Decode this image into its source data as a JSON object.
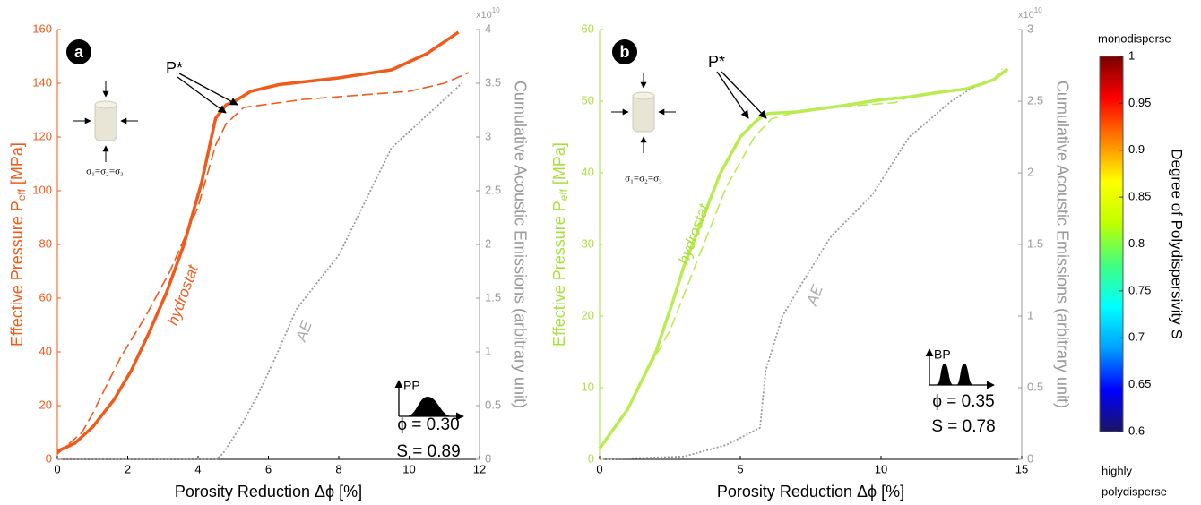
{
  "chart_data": [
    {
      "type": "line",
      "panel": "a",
      "xlabel": "Porosity Reduction Δϕ [%]",
      "ylabel": "Effective Pressure P",
      "ylabel_sub": "eff",
      "ylabel_unit": " [MPa]",
      "y2label": "Cumulative Acoustic Emissions (arbitrary unit)",
      "y2_multiplier": "x10",
      "y2_multiplier_exp": "10",
      "axis_color": "#f05a1a",
      "y2_color": "#999999",
      "xlim": [
        0,
        12
      ],
      "xticks": [
        0,
        2,
        4,
        6,
        8,
        10,
        12
      ],
      "ylim": [
        0,
        160
      ],
      "yticks": [
        0,
        20,
        40,
        60,
        80,
        100,
        120,
        140,
        160
      ],
      "y2lim": [
        0,
        4
      ],
      "y2ticks": [
        0,
        0.5,
        1,
        1.5,
        2,
        2.5,
        3,
        3.5,
        4
      ],
      "series": [
        {
          "color": "#f05a1a",
          "style": "solid",
          "x": [
            0,
            0.5,
            1,
            1.6,
            2.1,
            2.6,
            3.1,
            3.6,
            4.1,
            4.5,
            4.8,
            5.0,
            5.5,
            6.3,
            8,
            9.5,
            10.5,
            11.4
          ],
          "values": [
            3,
            6,
            12,
            22,
            33,
            47,
            62,
            80,
            103,
            127,
            132,
            133,
            137,
            139.5,
            142,
            145,
            151,
            159
          ]
        },
        {
          "color": "#f05a1a",
          "style": "dashed",
          "x": [
            0,
            0.7,
            1,
            1.8,
            2.5,
            3.2,
            4,
            4.5,
            4.8,
            5.3,
            7,
            9,
            10,
            11,
            11.7
          ],
          "values": [
            2,
            10,
            17,
            38,
            53,
            70,
            94,
            117,
            125,
            131,
            134,
            136,
            137,
            140,
            144
          ]
        },
        {
          "color": "#999999",
          "style": "dotted",
          "axis": "y2",
          "x": [
            0,
            4.5,
            4.7,
            5.2,
            5.7,
            6.2,
            6.8,
            8,
            9.5,
            10.5,
            11.5
          ],
          "values": [
            0,
            0,
            0.05,
            0.3,
            0.6,
            0.95,
            1.4,
            1.9,
            2.9,
            3.2,
            3.5
          ]
        }
      ],
      "peak_label": "P*",
      "line_labels": [
        "hydrostat",
        "AE"
      ],
      "distribution": "PP",
      "phi": "ϕ = 0.30",
      "s": "S = 0.89",
      "stress": "σ₁=σ₂=σ₃"
    },
    {
      "type": "line",
      "panel": "b",
      "xlabel": "Porosity Reduction Δϕ [%]",
      "ylabel": "Effective Pressure P",
      "ylabel_sub": "eff",
      "ylabel_unit": " [MPa]",
      "y2label": "Cumulative Acoustic Emissions (arbitrary unit)",
      "y2_multiplier": "x10",
      "y2_multiplier_exp": "10",
      "axis_color": "#a8e03a",
      "y2_color": "#999999",
      "xlim": [
        0,
        15
      ],
      "xticks": [
        0,
        5,
        10,
        15
      ],
      "ylim": [
        0,
        60
      ],
      "yticks": [
        0,
        10,
        20,
        30,
        40,
        50,
        60
      ],
      "y2lim": [
        0,
        3
      ],
      "y2ticks": [
        0,
        0.5,
        1,
        1.5,
        2,
        2.5,
        3
      ],
      "series": [
        {
          "color": "#b8ec50",
          "style": "solid",
          "x": [
            0,
            1,
            1.5,
            2,
            2.6,
            3,
            3.6,
            4.3,
            5,
            5.5,
            5.8,
            6,
            7,
            8.5,
            10,
            11,
            12,
            13,
            13.5,
            14,
            14.5
          ],
          "values": [
            1.5,
            7,
            11,
            15,
            22,
            27,
            33,
            40,
            45,
            47,
            48,
            48.3,
            48.5,
            49.3,
            50.2,
            50.6,
            51.2,
            51.7,
            52.3,
            53,
            54.5
          ]
        },
        {
          "color": "#b8ec50",
          "style": "dashed",
          "x": [
            1.5,
            2.5,
            3.5,
            4.5,
            5.5,
            6.1,
            7,
            8.5,
            10.5,
            11,
            13,
            14,
            14.3
          ],
          "values": [
            11,
            18,
            28,
            38,
            45,
            47.5,
            48.5,
            49.2,
            49.8,
            50.6,
            51.8,
            53,
            54.5
          ]
        },
        {
          "color": "#999999",
          "style": "dotted",
          "axis": "y2",
          "x": [
            0,
            3,
            4.5,
            5.7,
            5.9,
            6.5,
            7.1,
            8.2,
            9.7,
            11,
            12.5,
            13.3
          ],
          "values": [
            0,
            0.02,
            0.1,
            0.22,
            0.62,
            1.0,
            1.2,
            1.55,
            1.85,
            2.25,
            2.5,
            2.6
          ]
        }
      ],
      "peak_label": "P*",
      "line_labels": [
        "hydrostat",
        "AE"
      ],
      "distribution": "BP",
      "phi": "ϕ = 0.35",
      "s": "S = 0.78",
      "stress": "σ₁=σ₂=σ₃"
    },
    {
      "type": "colorbar",
      "label": "Degree of Polydispersivity S",
      "top_label": "monodisperse",
      "bottom_label": [
        "highly",
        "polydisperse"
      ],
      "lim": [
        0.6,
        1
      ],
      "ticks": [
        0.6,
        0.65,
        0.7,
        0.75,
        0.8,
        0.85,
        0.9,
        0.95,
        1
      ],
      "colors": [
        "#1b1464",
        "#0000ff",
        "#00a0ff",
        "#00ffff",
        "#40ff80",
        "#c0ff00",
        "#ffff00",
        "#ff8000",
        "#ff0000",
        "#7a0000"
      ]
    }
  ]
}
